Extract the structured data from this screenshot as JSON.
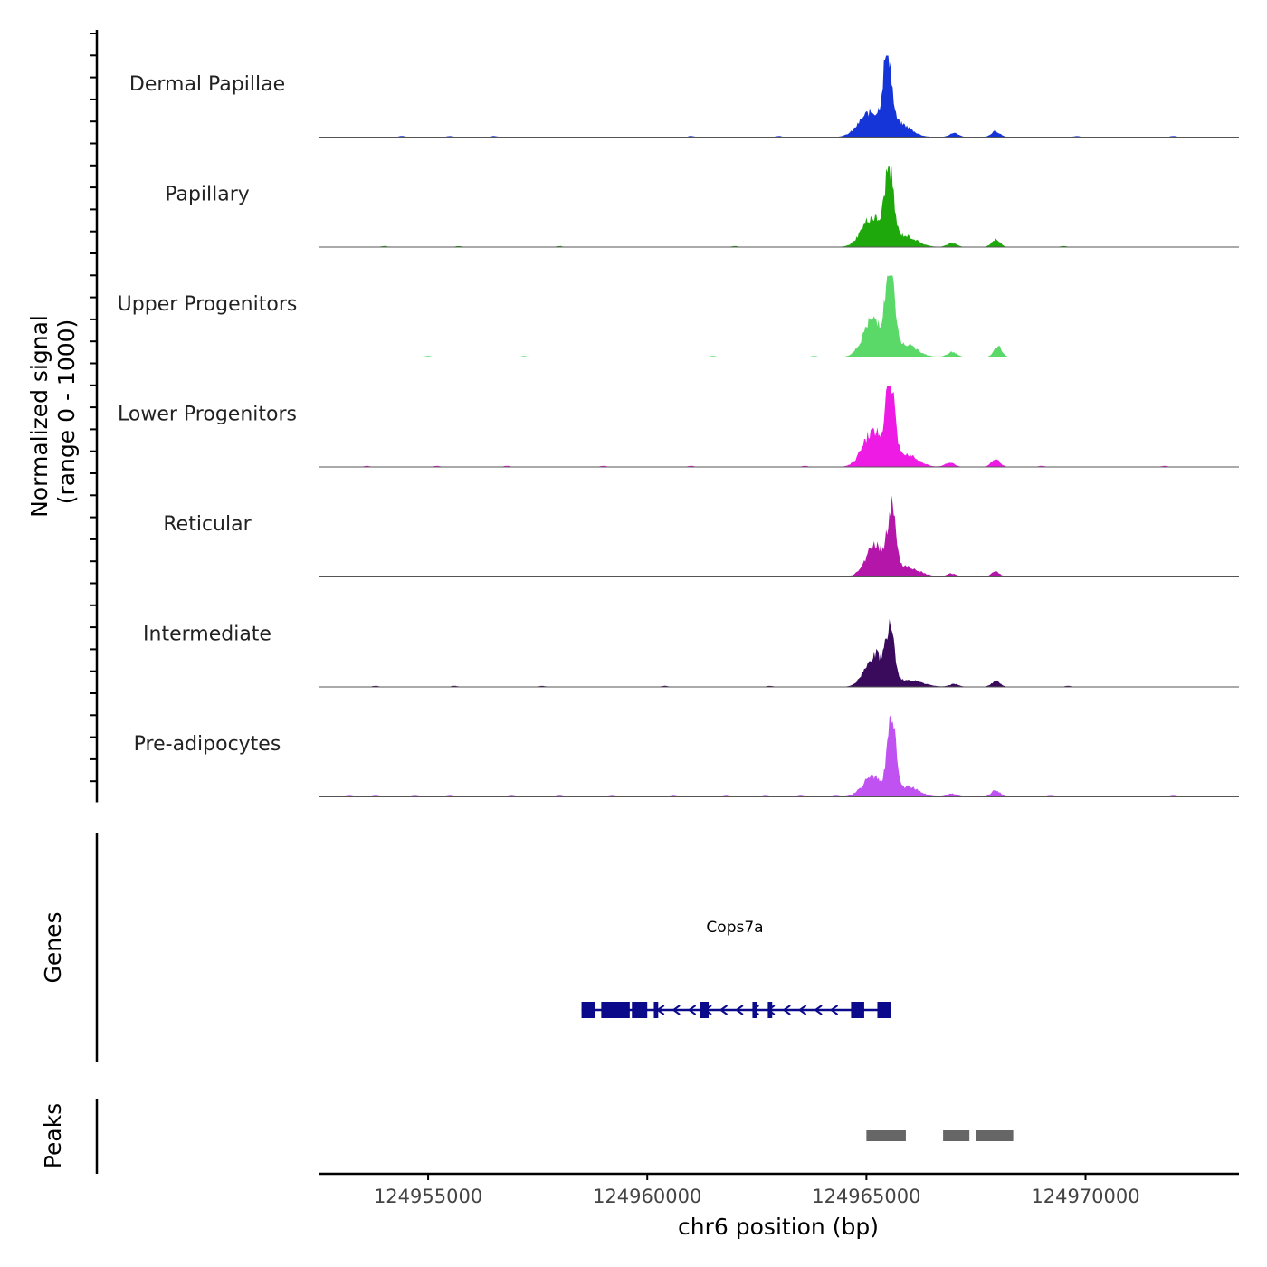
{
  "chart_data": {
    "type": "area",
    "title": "",
    "ylabel_line1": "Normalized signal",
    "ylabel_line2": "(range 0 - 1000)",
    "ylim": [
      0,
      1000
    ],
    "xlabel": "chr6 position (bp)",
    "xlim": [
      124952500,
      124973500
    ],
    "xticks": [
      124955000,
      124960000,
      124965000,
      124970000
    ],
    "xtick_labels": [
      "124955000",
      "124960000",
      "124965000",
      "124970000"
    ],
    "tracks": [
      {
        "name": "Dermal Papillae",
        "color": "#1535d8",
        "peaks": [
          [
            124965100,
            300,
            260
          ],
          [
            124965480,
            930,
            90
          ],
          [
            124965750,
            160,
            260
          ],
          [
            124967000,
            45,
            110
          ],
          [
            124967950,
            70,
            100
          ]
        ],
        "bumps": [
          124954400,
          124955500,
          124956500,
          124961000,
          124963000,
          124969800,
          124972000
        ]
      },
      {
        "name": "Papillary",
        "color": "#1fa80c",
        "peaks": [
          [
            124965120,
            360,
            230
          ],
          [
            124965520,
            890,
            95
          ],
          [
            124965850,
            140,
            280
          ],
          [
            124966950,
            50,
            110
          ],
          [
            124967950,
            90,
            100
          ]
        ],
        "bumps": [
          124954000,
          124955700,
          124958000,
          124962000,
          124969500
        ]
      },
      {
        "name": "Upper Progenitors",
        "color": "#5ad868",
        "peaks": [
          [
            124965150,
            460,
            220
          ],
          [
            124965540,
            960,
            100
          ],
          [
            124965900,
            150,
            260
          ],
          [
            124966950,
            60,
            110
          ],
          [
            124968000,
            130,
            90
          ]
        ],
        "bumps": [
          124955000,
          124957200,
          124961500,
          124963800
        ]
      },
      {
        "name": "Lower Progenitors",
        "color": "#ee1be4",
        "peaks": [
          [
            124965150,
            440,
            230
          ],
          [
            124965540,
            1000,
            95
          ],
          [
            124965900,
            160,
            260
          ],
          [
            124966900,
            50,
            110
          ],
          [
            124967950,
            90,
            100
          ]
        ],
        "bumps": [
          124953600,
          124955200,
          124956800,
          124959000,
          124961000,
          124963600,
          124969000,
          124971800
        ]
      },
      {
        "name": "Reticular",
        "color": "#b316a8",
        "peaks": [
          [
            124965200,
            380,
            220
          ],
          [
            124965580,
            770,
            90
          ],
          [
            124965900,
            120,
            300
          ],
          [
            124966950,
            40,
            110
          ],
          [
            124967950,
            60,
            100
          ]
        ],
        "bumps": [
          124955400,
          124958800,
          124962400,
          124970200
        ]
      },
      {
        "name": "Intermediate",
        "color": "#3a0a5c",
        "peaks": [
          [
            124965200,
            400,
            220
          ],
          [
            124965550,
            650,
            90
          ],
          [
            124965950,
            80,
            320
          ],
          [
            124967000,
            35,
            110
          ],
          [
            124967950,
            70,
            100
          ]
        ],
        "bumps": [
          124953800,
          124955600,
          124957600,
          124960400,
          124962800,
          124969600
        ]
      },
      {
        "name": "Pre-adipocytes",
        "color": "#c052f2",
        "peaks": [
          [
            124965150,
            250,
            230
          ],
          [
            124965580,
            940,
            95
          ],
          [
            124965950,
            120,
            250
          ],
          [
            124966950,
            40,
            110
          ],
          [
            124967950,
            80,
            100
          ]
        ],
        "bumps": [
          124953200,
          124953800,
          124954700,
          124955500,
          124956900,
          124958000,
          124959200,
          124960600,
          124961800,
          124962700,
          124963500,
          124964300,
          124969200,
          124972000
        ]
      }
    ],
    "genes_label": "Genes",
    "gene": {
      "name": "Cops7a",
      "strand": "-",
      "start": 124958500,
      "end": 124965550,
      "color": "#0a0a8a",
      "exons": [
        [
          124958500,
          124958800
        ],
        [
          124958950,
          124959600
        ],
        [
          124959650,
          124960000
        ],
        [
          124960150,
          124960250
        ],
        [
          124961200,
          124961400
        ],
        [
          124962400,
          124962500
        ],
        [
          124962750,
          124962850
        ],
        [
          124964650,
          124964950
        ],
        [
          124965250,
          124965550
        ]
      ]
    },
    "peaks_label": "Peaks",
    "peak_regions": [
      [
        124965000,
        124965900
      ],
      [
        124966750,
        124967350
      ],
      [
        124967500,
        124968350
      ]
    ],
    "peak_color": "#666666"
  }
}
